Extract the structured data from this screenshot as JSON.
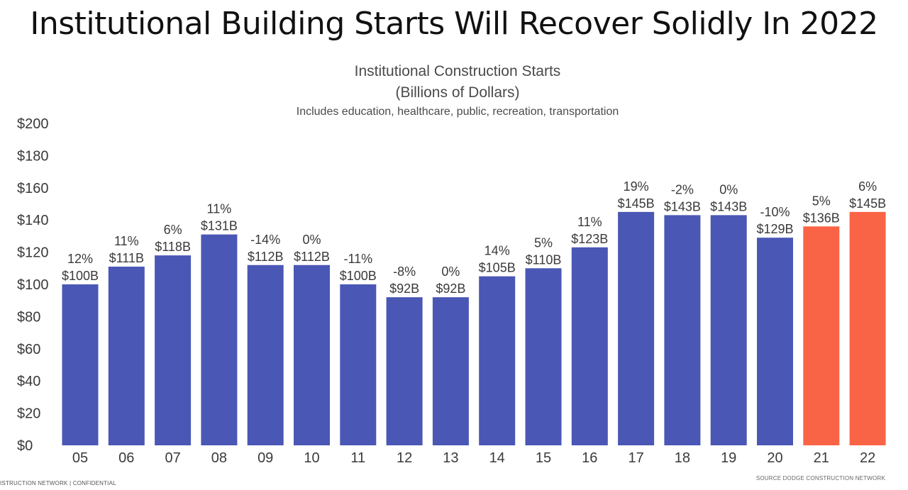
{
  "page": {
    "headline": "Institutional Building Starts Will Recover Solidly In 2022",
    "footer_left": "ISTRUCTION NETWORK | CONFIDENTIAL",
    "footer_right": "SOURCE DODGE CONSTRUCTION NETWORK"
  },
  "chart_data": {
    "type": "bar",
    "title": "Institutional Construction Starts",
    "unit_label": "(Billions of Dollars)",
    "subtitle": "Includes education, healthcare, public, recreation, transportation",
    "xlabel": "",
    "ylabel": "",
    "ylim": [
      0,
      200
    ],
    "y_ticks": [
      "$0",
      "$20",
      "$40",
      "$60",
      "$80",
      "$100",
      "$120",
      "$140",
      "$160",
      "$180",
      "$200"
    ],
    "y_tick_values": [
      0,
      20,
      40,
      60,
      80,
      100,
      120,
      140,
      160,
      180,
      200
    ],
    "grid": false,
    "categories": [
      "05",
      "06",
      "07",
      "08",
      "09",
      "10",
      "11",
      "12",
      "13",
      "14",
      "15",
      "16",
      "17",
      "18",
      "19",
      "20",
      "21",
      "22"
    ],
    "values": [
      100,
      111,
      118,
      131,
      112,
      112,
      100,
      92,
      92,
      105,
      110,
      123,
      145,
      143,
      143,
      129,
      136,
      145
    ],
    "value_labels": [
      "$100B",
      "$111B",
      "$118B",
      "$131B",
      "$112B",
      "$112B",
      "$100B",
      "$92B",
      "$92B",
      "$105B",
      "$110B",
      "$123B",
      "$145B",
      "$143B",
      "$143B",
      "$129B",
      "$136B",
      "$145B"
    ],
    "change_labels": [
      "12%",
      "11%",
      "6%",
      "11%",
      "-14%",
      "0%",
      "-11%",
      "-8%",
      "0%",
      "14%",
      "5%",
      "11%",
      "19%",
      "-2%",
      "0%",
      "-10%",
      "5%",
      "6%"
    ],
    "forecast": [
      false,
      false,
      false,
      false,
      false,
      false,
      false,
      false,
      false,
      false,
      false,
      false,
      false,
      false,
      false,
      false,
      true,
      true
    ],
    "colors": {
      "actual": "#4a57b5",
      "forecast": "#fa6446",
      "text": "#3a3a3a"
    }
  }
}
